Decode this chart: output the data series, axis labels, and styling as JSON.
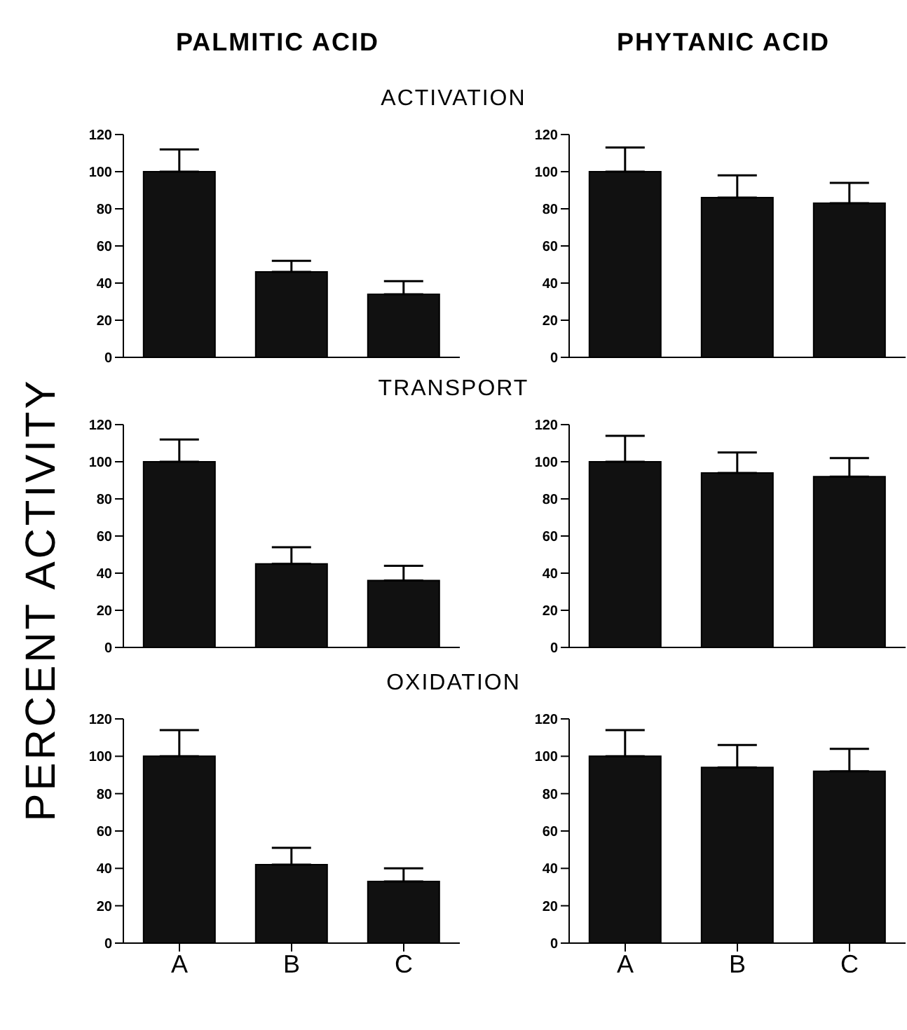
{
  "chart_data": [
    {
      "type": "bar",
      "title": "PALMITIC ACID",
      "subtitle": "ACTIVATION",
      "ylabel": "PERCENT ACTIVITY",
      "categories": [
        null,
        null,
        null
      ],
      "values": [
        100,
        46,
        34
      ],
      "errors": [
        [
          100,
          112
        ],
        [
          46,
          52
        ],
        [
          34,
          41
        ]
      ],
      "color": "#111111",
      "ylim": [
        0,
        120
      ],
      "yticks": [
        0,
        20,
        40,
        60,
        80,
        100,
        120
      ],
      "grid": false,
      "tick_labels": "y"
    },
    {
      "type": "bar",
      "title": "PHYTANIC ACID",
      "categories": [
        null,
        null,
        null
      ],
      "values": [
        100,
        86,
        83
      ],
      "errors": [
        [
          100,
          113
        ],
        [
          86,
          98
        ],
        [
          83,
          94
        ]
      ],
      "color": "#111111",
      "ylim": [
        0,
        120
      ],
      "yticks": [
        0,
        20,
        40,
        60,
        80,
        100,
        120
      ],
      "grid": false,
      "tick_labels": "y"
    },
    {
      "type": "bar",
      "subtitle": "TRANSPORT",
      "categories": [
        null,
        null,
        null
      ],
      "values": [
        100,
        45,
        36
      ],
      "errors": [
        [
          100,
          112
        ],
        [
          45,
          54
        ],
        [
          36,
          44
        ]
      ],
      "color": "#111111",
      "ylim": [
        0,
        120
      ],
      "yticks": [
        0,
        20,
        40,
        60,
        80,
        100,
        120
      ],
      "grid": false,
      "tick_labels": "y"
    },
    {
      "type": "bar",
      "categories": [
        null,
        null,
        null
      ],
      "values": [
        100,
        94,
        92
      ],
      "errors": [
        [
          100,
          114
        ],
        [
          94,
          105
        ],
        [
          92,
          102
        ]
      ],
      "color": "#111111",
      "ylim": [
        0,
        120
      ],
      "yticks": [
        0,
        20,
        40,
        60,
        80,
        100,
        120
      ],
      "grid": false,
      "tick_labels": "y"
    },
    {
      "type": "bar",
      "subtitle": "OXIDATION",
      "categories": [
        "A",
        "B",
        "C"
      ],
      "values": [
        100,
        42,
        33
      ],
      "errors": [
        [
          100,
          114
        ],
        [
          42,
          51
        ],
        [
          33,
          40
        ]
      ],
      "color": "#111111",
      "ylim": [
        0,
        120
      ],
      "yticks": [
        0,
        20,
        40,
        60,
        80,
        100,
        120
      ],
      "grid": false
    },
    {
      "type": "bar",
      "categories": [
        "A",
        "B",
        "C"
      ],
      "values": [
        100,
        94,
        92
      ],
      "errors": [
        [
          100,
          114
        ],
        [
          94,
          106
        ],
        [
          92,
          104
        ]
      ],
      "color": "#111111",
      "ylim": [
        0,
        120
      ],
      "yticks": [
        0,
        20,
        40,
        60,
        80,
        100,
        120
      ],
      "grid": false
    }
  ]
}
